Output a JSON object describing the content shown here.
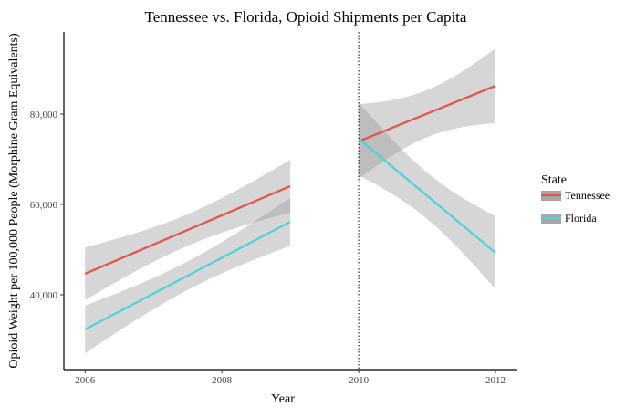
{
  "chart_data": {
    "type": "line",
    "title": "Tennessee vs. Florida, Opioid Shipments per Capita",
    "xlabel": "Year",
    "ylabel": "Opioid Weight per 100,000 People (Morphine Gram Equivalents)",
    "xlim": [
      2005.69,
      2012.32
    ],
    "ylim": [
      23430,
      98180
    ],
    "xticks": [
      2006,
      2008,
      2010,
      2012
    ],
    "xtick_labels": [
      "2006",
      "2008",
      "2010",
      "2012"
    ],
    "yticks": [
      40000,
      60000,
      80000
    ],
    "ytick_labels": [
      "40,000",
      "60,000",
      "80,000"
    ],
    "vline": {
      "x": 2010,
      "style": "dotted"
    },
    "grid": false,
    "legend": {
      "title": "State",
      "position": "right",
      "entries": [
        "Tennessee",
        "Florida"
      ]
    },
    "series": [
      {
        "name": "Tennessee",
        "color": "#E0584D",
        "segments": [
          {
            "x": [
              2006,
              2009
            ],
            "y": [
              44650,
              64040
            ],
            "ci_halfwidth_end": 5850,
            "n": 4
          },
          {
            "x": [
              2010,
              2012
            ],
            "y": [
              73940,
              86260
            ],
            "ci_halfwidth_end": 8250,
            "n": 3
          }
        ]
      },
      {
        "name": "Florida",
        "color": "#4DD3D8",
        "segments": [
          {
            "x": [
              2006,
              2009
            ],
            "y": [
              32320,
              56160
            ],
            "ci_halfwidth_end": 5300,
            "n": 4
          },
          {
            "x": [
              2010,
              2012
            ],
            "y": [
              74550,
              49300
            ],
            "ci_halfwidth_end": 8100,
            "n": 3
          }
        ]
      }
    ]
  }
}
